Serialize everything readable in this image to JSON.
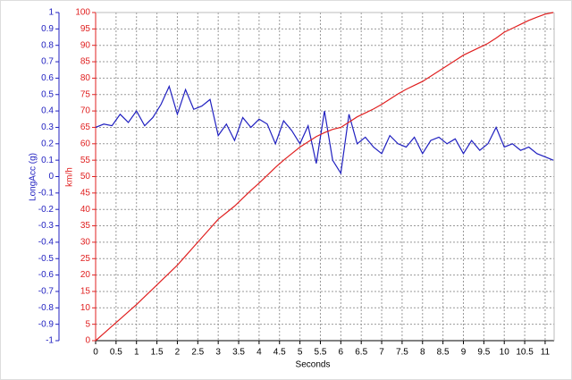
{
  "chart_data": {
    "type": "line",
    "xlabel": "Seconds",
    "ylabel": "LongAcc (g)",
    "y2label": "km/h",
    "x": [
      0,
      0.2,
      0.4,
      0.6,
      0.8,
      1,
      1.2,
      1.4,
      1.6,
      1.8,
      2,
      2.2,
      2.4,
      2.6,
      2.8,
      3,
      3.2,
      3.4,
      3.6,
      3.8,
      4,
      4.2,
      4.4,
      4.6,
      4.8,
      5,
      5.2,
      5.4,
      5.6,
      5.8,
      6,
      6.2,
      6.4,
      6.6,
      6.8,
      7,
      7.2,
      7.4,
      7.6,
      7.8,
      8,
      8.2,
      8.4,
      8.6,
      8.8,
      9,
      9.2,
      9.4,
      9.6,
      9.8,
      10,
      10.2,
      10.4,
      10.6,
      10.8,
      11,
      11.2
    ],
    "series": [
      {
        "color": "#2020c0",
        "axis": "y",
        "values": [
          0.3,
          0.32,
          0.31,
          0.38,
          0.33,
          0.4,
          0.31,
          0.36,
          0.44,
          0.55,
          0.38,
          0.53,
          0.41,
          0.43,
          0.47,
          0.25,
          0.32,
          0.22,
          0.36,
          0.3,
          0.35,
          0.32,
          0.2,
          0.34,
          0.28,
          0.2,
          0.31,
          0.08,
          0.4,
          0.1,
          0.02,
          0.38,
          0.2,
          0.24,
          0.18,
          0.14,
          0.25,
          0.2,
          0.18,
          0.24,
          0.14,
          0.22,
          0.24,
          0.2,
          0.23,
          0.14,
          0.22,
          0.16,
          0.2,
          0.3,
          0.18,
          0.2,
          0.16,
          0.18,
          0.14,
          0.12,
          0.1
        ]
      },
      {
        "color": "#e02020",
        "axis": "y2",
        "values": [
          0,
          2.2,
          4.4,
          6.6,
          8.8,
          11,
          13.4,
          15.8,
          18.2,
          20.6,
          23,
          25.8,
          28.6,
          31.4,
          34.2,
          37,
          39,
          41,
          43.4,
          45.8,
          48,
          50.4,
          52.8,
          55,
          57,
          59,
          60.6,
          62.2,
          63.4,
          64.4,
          65,
          66.6,
          68.2,
          69.4,
          70.6,
          72,
          73.6,
          75.2,
          76.6,
          77.8,
          79,
          80.6,
          82.2,
          83.8,
          85.4,
          87,
          88.2,
          89.4,
          90.6,
          92.2,
          94,
          95.2,
          96.4,
          97.6,
          98.6,
          99.5,
          100
        ]
      }
    ],
    "xlim": [
      0,
      11.22
    ],
    "xticks": [
      0,
      0.5,
      1,
      1.5,
      2,
      2.5,
      3,
      3.5,
      4,
      4.5,
      5,
      5.5,
      6,
      6.5,
      7,
      7.5,
      8,
      8.5,
      9,
      9.5,
      10,
      10.5,
      11
    ],
    "ylim": [
      -1,
      1
    ],
    "yticks": [
      -1,
      -0.9,
      -0.8,
      -0.7,
      -0.6,
      -0.5,
      -0.4,
      -0.3,
      -0.2,
      -0.1,
      0,
      0.1,
      0.2,
      0.3,
      0.4,
      0.5,
      0.6,
      0.7,
      0.8,
      0.9,
      1
    ],
    "y2lim": [
      0,
      100
    ],
    "y2ticks": [
      0,
      5,
      10,
      15,
      20,
      25,
      30,
      35,
      40,
      45,
      50,
      55,
      60,
      65,
      70,
      75,
      80,
      85,
      90,
      95,
      100
    ],
    "grid": true
  }
}
